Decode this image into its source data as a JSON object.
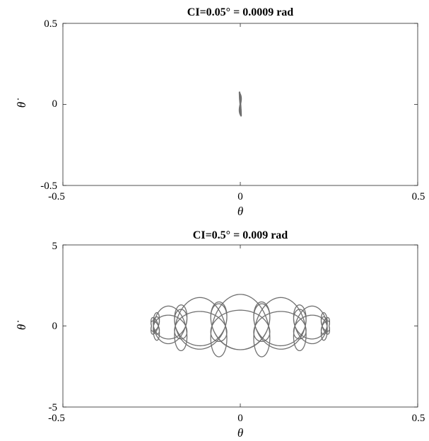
{
  "chart_data": [
    {
      "type": "line",
      "title": "CI=0.05° = 0.0009 rad",
      "xlabel": "θ",
      "ylabel": "θ̇",
      "xlim": [
        -0.5,
        0.5
      ],
      "ylim": [
        -0.5,
        0.5
      ],
      "xticks": [
        -0.5,
        0,
        0.5
      ],
      "xtick_labels": [
        "-0.5",
        "0",
        "0.5"
      ],
      "yticks": [
        -0.5,
        0,
        0.5
      ],
      "ytick_labels": [
        "-0.5",
        "0",
        "0.5"
      ],
      "grid": false,
      "series": [
        {
          "color": "#707070",
          "x": [
            0.0,
            0.0015,
            0.0022,
            0.0015,
            0.0,
            -0.0015,
            -0.0022,
            -0.0015,
            0.0,
            0.0012,
            0.0018,
            0.0012,
            0.0,
            -0.0012,
            -0.0018,
            -0.0012,
            0.0
          ],
          "y": [
            0.0,
            -0.03,
            -0.065,
            -0.03,
            0.0,
            0.035,
            0.075,
            0.035,
            0.0,
            -0.04,
            -0.06,
            -0.02,
            0.02,
            0.05,
            0.07,
            0.03,
            0.0
          ]
        }
      ]
    },
    {
      "type": "line",
      "title": "CI=0.5° = 0.009 rad",
      "xlabel": "θ",
      "ylabel": "θ̇",
      "xlim": [
        -0.5,
        0.5
      ],
      "ylim": [
        -5,
        5
      ],
      "xticks": [
        -0.5,
        0,
        0.5
      ],
      "xtick_labels": [
        "-0.5",
        "0",
        "0.5"
      ],
      "yticks": [
        -5,
        0,
        5
      ],
      "ytick_labels": [
        "-5",
        "0",
        "5"
      ],
      "grid": false,
      "series": [
        {
          "color": "#707070",
          "amplitude": 0.25,
          "loop_radius_x": 0.05,
          "loop_radius_y": 1.6,
          "revolutions": 3,
          "loops_per_revolution": 13
        }
      ]
    }
  ]
}
